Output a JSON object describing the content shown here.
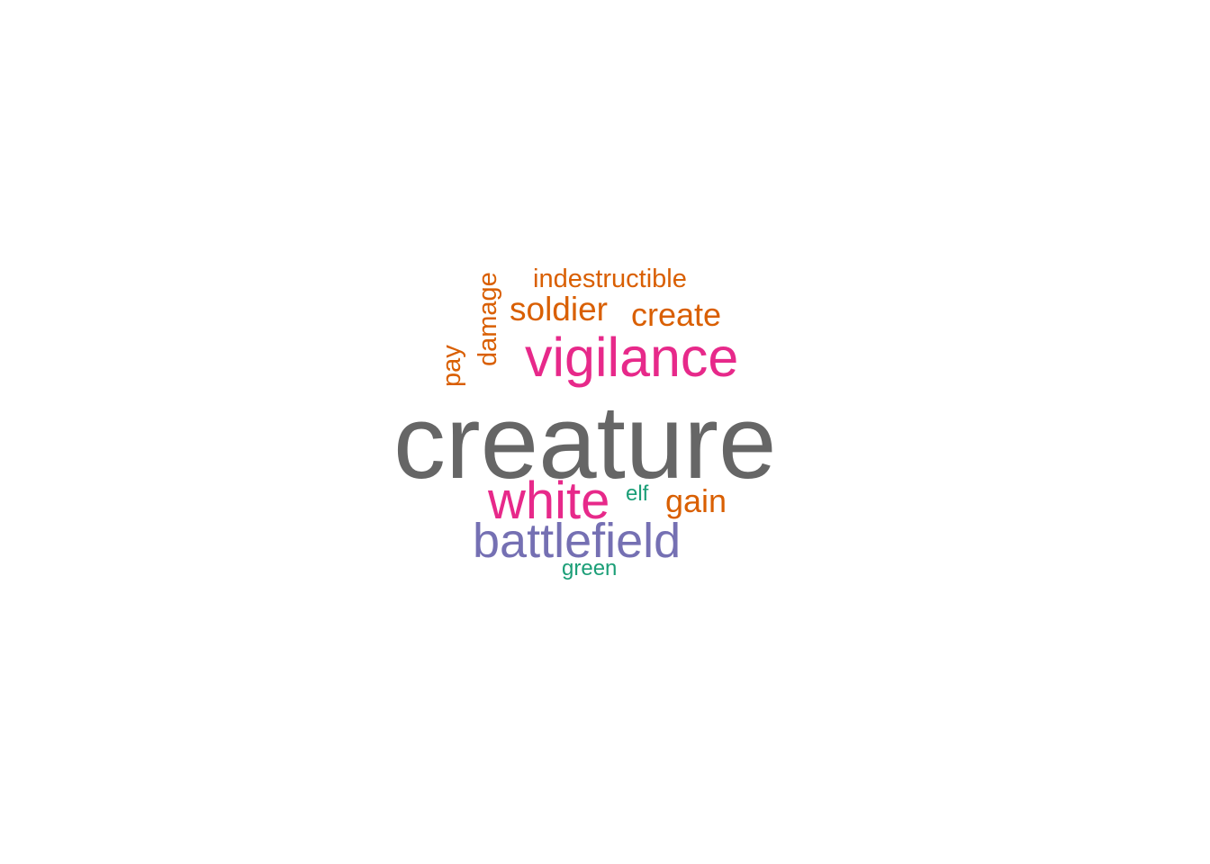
{
  "word_cloud": {
    "words": [
      {
        "text": "creature",
        "color": "#666666"
      },
      {
        "text": "vigilance",
        "color": "#e7298a"
      },
      {
        "text": "white",
        "color": "#e7298a"
      },
      {
        "text": "battlefield",
        "color": "#7570b3"
      },
      {
        "text": "soldier",
        "color": "#d95f02"
      },
      {
        "text": "create",
        "color": "#d95f02"
      },
      {
        "text": "gain",
        "color": "#d95f02"
      },
      {
        "text": "indestructible",
        "color": "#d95f02"
      },
      {
        "text": "damage",
        "color": "#d95f02",
        "orientation": "vertical"
      },
      {
        "text": "pay",
        "color": "#d95f02",
        "orientation": "vertical"
      },
      {
        "text": "elf",
        "color": "#1b9e77"
      },
      {
        "text": "green",
        "color": "#1b9e77"
      }
    ]
  }
}
